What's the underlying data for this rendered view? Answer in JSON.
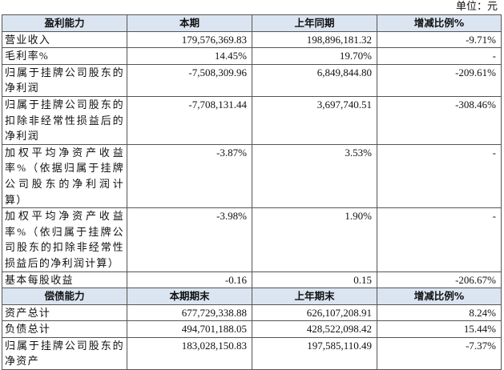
{
  "unit": "单位：元",
  "sections": [
    {
      "header": [
        "盈利能力",
        "本期",
        "上年同期",
        "增减比例%"
      ],
      "rows": [
        [
          "营业收入",
          "179,576,369.83",
          "198,896,181.32",
          "-9.71%"
        ],
        [
          "毛利率%",
          "14.45%",
          "19.70%",
          "-"
        ],
        [
          "归属于挂牌公司股东的净利润",
          "-7,508,309.96",
          "6,849,844.80",
          "-209.61%"
        ],
        [
          "归属于挂牌公司股东的扣除非经常性损益后的净利润",
          "-7,708,131.44",
          "3,697,740.51",
          "-308.46%"
        ],
        [
          "加权平均净资产收益率%（依据归属于挂牌公司股东的净利润计算）",
          "-3.87%",
          "3.53%",
          "-"
        ],
        [
          "加权平均净资产收益率%（依归属于挂牌公司股东的扣除非经常性损益后的净利润计算）",
          "-3.98%",
          "1.90%",
          "-"
        ],
        [
          "基本每股收益",
          "-0.16",
          "0.15",
          "-206.67%"
        ]
      ]
    },
    {
      "header": [
        "偿债能力",
        "本期期末",
        "上年期末",
        "增减比例%"
      ],
      "rows": [
        [
          "资产总计",
          "677,729,338.88",
          "626,107,208.91",
          "8.24%"
        ],
        [
          "负债总计",
          "494,701,188.05",
          "428,522,098.42",
          "15.44%"
        ],
        [
          "归属于挂牌公司股东的净资产",
          "183,028,150.83",
          "197,585,110.49",
          "-7.37%"
        ]
      ]
    }
  ]
}
